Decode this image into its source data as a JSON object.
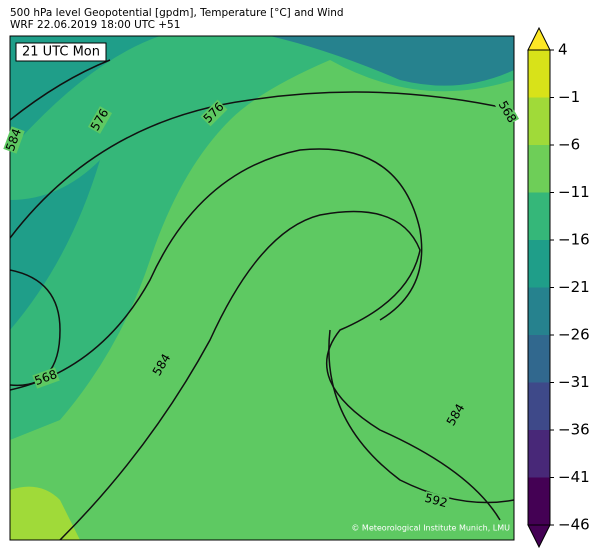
{
  "header": {
    "title": "500 hPa level Geopotential [gpdm], Temperature [°C] and Wind",
    "subtitle": "WRF 22.06.2019 18:00 UTC +51"
  },
  "map": {
    "time_label": "21 UTC Mon",
    "credit": "© Meteorological Institute Munich, LMU",
    "contour_labels": [
      584,
      576,
      576,
      568,
      568,
      584,
      584,
      592
    ]
  },
  "colorbar": {
    "range": [
      -46,
      4
    ],
    "ticks": [
      4,
      {
        "value": -1,
        "label": "−1"
      },
      {
        "value": -6,
        "label": "−6"
      },
      {
        "value": -11,
        "label": "−11"
      },
      {
        "value": -16,
        "label": "−16"
      },
      {
        "value": -21,
        "label": "−21"
      },
      {
        "value": -26,
        "label": "−26"
      },
      {
        "value": -31,
        "label": "−31"
      },
      {
        "value": -36,
        "label": "−36"
      },
      {
        "value": -41,
        "label": "−41"
      },
      {
        "value": -46,
        "label": "−46"
      }
    ],
    "colors": [
      "#d8e219",
      "#a0da39",
      "#6ece58",
      "#35b779",
      "#1f9e89",
      "#26828e",
      "#31688e",
      "#3e4989",
      "#482878",
      "#440154"
    ],
    "extend_colors": [
      "#fde725",
      "#440154"
    ]
  }
}
